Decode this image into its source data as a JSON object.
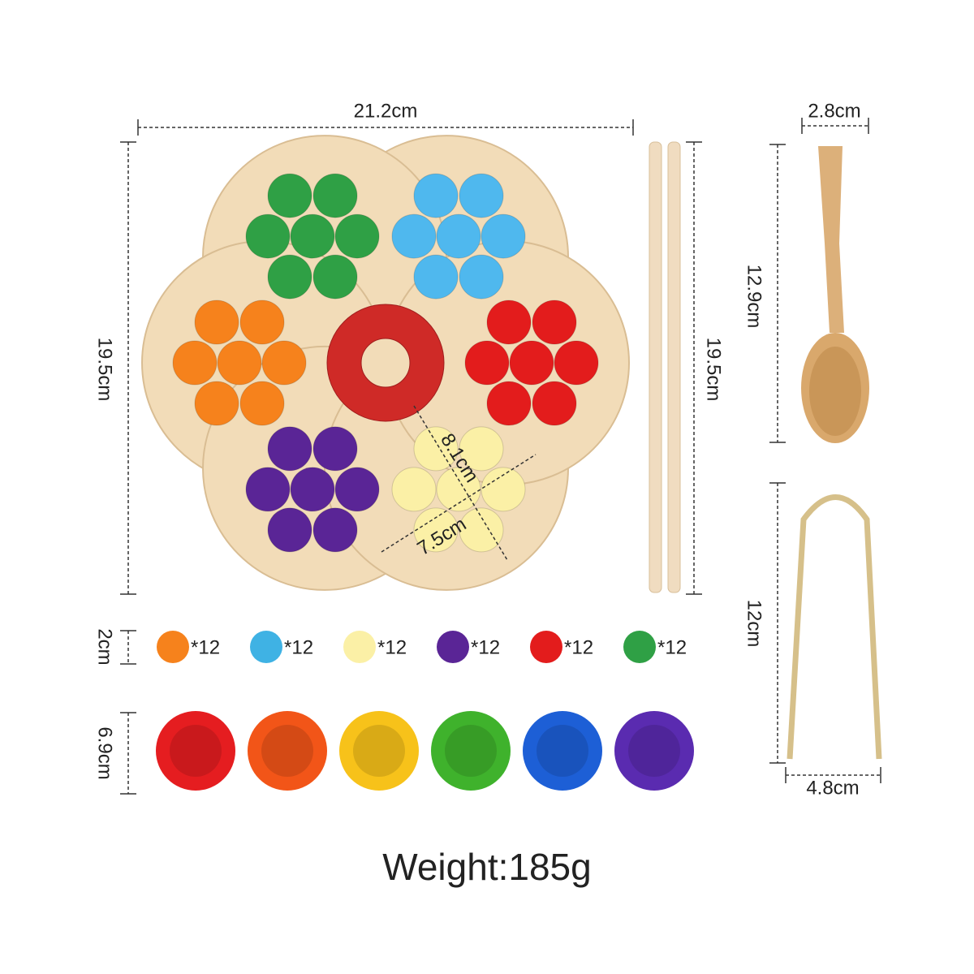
{
  "board": {
    "width": "21.2cm",
    "height": "19.5cm",
    "section_length": "8.1cm",
    "section_width": "7.5cm"
  },
  "chopsticks": {
    "length": "19.5cm"
  },
  "spoon": {
    "width": "2.8cm",
    "length": "12.9cm"
  },
  "tongs": {
    "length": "12cm",
    "width": "4.8cm"
  },
  "pompoms": {
    "diameter": "2cm",
    "items": [
      {
        "quantity": "*12"
      },
      {
        "quantity": "*12"
      },
      {
        "quantity": "*12"
      },
      {
        "quantity": "*12"
      },
      {
        "quantity": "*12"
      },
      {
        "quantity": "*12"
      }
    ]
  },
  "cups": {
    "diameter": "6.9cm"
  },
  "weight": "Weight:185g"
}
